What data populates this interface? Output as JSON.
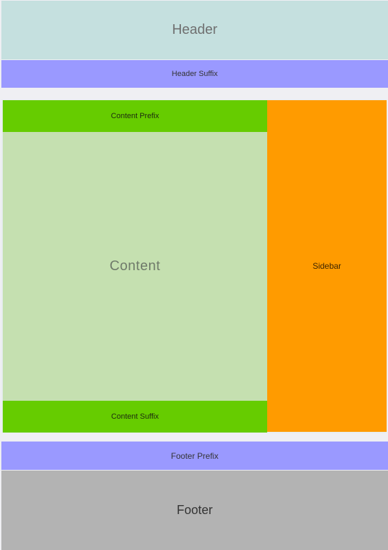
{
  "header": {
    "label": "Header"
  },
  "header_suffix": {
    "label": "Header Suffix"
  },
  "content_prefix": {
    "label": "Content Prefix"
  },
  "content": {
    "label": "Content"
  },
  "content_suffix": {
    "label": "Content Suffix"
  },
  "sidebar": {
    "label": "Sidebar"
  },
  "footer_prefix": {
    "label": "Footer Prefix"
  },
  "footer": {
    "label": "Footer"
  },
  "colors": {
    "page_background": "#efeff3",
    "header": "#c5e0df",
    "header_suffix": "#9a99ff",
    "content_prefix": "#66cc00",
    "content": "#c5e0b0",
    "content_suffix": "#66cc00",
    "sidebar": "#ff9b00",
    "footer_prefix": "#9a99ff",
    "footer": "#b3b3b3"
  }
}
